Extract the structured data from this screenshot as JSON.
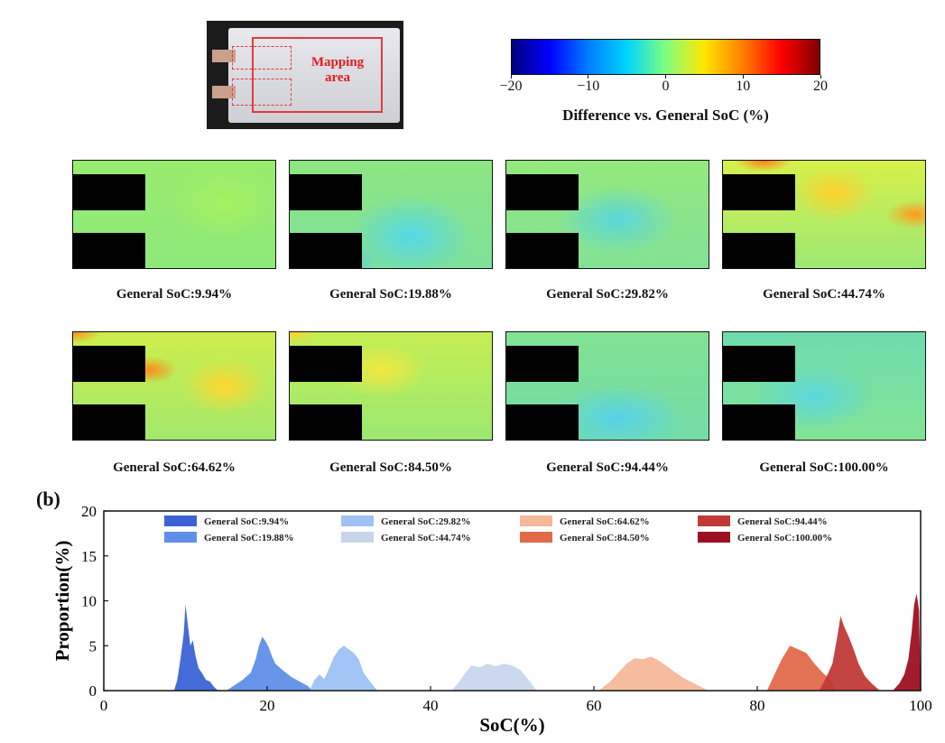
{
  "photo": {
    "label": "Mapping area"
  },
  "colorbar": {
    "ticks": [
      "−20",
      "−10",
      "0",
      "10",
      "20"
    ],
    "label": "Difference vs. General SoC (%)",
    "colors": [
      "#00007f",
      "#0000ff",
      "#007fff",
      "#00d4ff",
      "#7fff7f",
      "#ffe600",
      "#ff7f00",
      "#ff0000",
      "#7f0000"
    ]
  },
  "maps": {
    "items": [
      {
        "label": "General SoC:9.94%"
      },
      {
        "label": "General SoC:19.88%"
      },
      {
        "label": "General SoC:29.82%"
      },
      {
        "label": "General SoC:44.74%"
      },
      {
        "label": "General SoC:64.62%"
      },
      {
        "label": "General SoC:84.50%"
      },
      {
        "label": "General SoC:94.44%"
      },
      {
        "label": "General SoC:100.00%"
      }
    ]
  },
  "panel_b": {
    "tag": "(b)"
  },
  "chart_data": {
    "type": "area",
    "title": "",
    "xlabel": "SoC(%)",
    "ylabel": "Proportion(%)",
    "xlim": [
      0,
      100
    ],
    "ylim": [
      0,
      20
    ],
    "xticks": [
      0,
      20,
      40,
      60,
      80,
      100
    ],
    "yticks": [
      0,
      5,
      10,
      15,
      20
    ],
    "grid": false,
    "legend": "top",
    "series": [
      {
        "name": "General SoC:9.94%",
        "color": "#3b63d6",
        "points": [
          [
            8.6,
            0
          ],
          [
            9.0,
            1.2
          ],
          [
            9.3,
            3.0
          ],
          [
            9.6,
            5.0
          ],
          [
            9.8,
            6.5
          ],
          [
            10.0,
            9.6
          ],
          [
            10.2,
            8.0
          ],
          [
            10.4,
            6.5
          ],
          [
            10.6,
            5.0
          ],
          [
            10.9,
            5.6
          ],
          [
            11.2,
            4.0
          ],
          [
            11.6,
            2.5
          ],
          [
            12.0,
            2.0
          ],
          [
            12.5,
            1.2
          ],
          [
            13.0,
            1.0
          ],
          [
            13.5,
            0.4
          ],
          [
            14.0,
            0
          ]
        ]
      },
      {
        "name": "General SoC:19.88%",
        "color": "#5f8fe8",
        "points": [
          [
            15.0,
            0
          ],
          [
            16.0,
            0.6
          ],
          [
            17.0,
            1.2
          ],
          [
            18.0,
            2.0
          ],
          [
            18.6,
            3.5
          ],
          [
            19.0,
            5.0
          ],
          [
            19.4,
            6.0
          ],
          [
            19.8,
            5.5
          ],
          [
            20.2,
            4.8
          ],
          [
            20.6,
            3.8
          ],
          [
            21.0,
            3.0
          ],
          [
            22.0,
            2.2
          ],
          [
            23.0,
            1.5
          ],
          [
            24.0,
            1.0
          ],
          [
            25.0,
            0.5
          ],
          [
            25.5,
            0
          ]
        ]
      },
      {
        "name": "General SoC:29.82%",
        "color": "#9ec2f4",
        "points": [
          [
            25.2,
            0
          ],
          [
            25.8,
            1.2
          ],
          [
            26.4,
            1.8
          ],
          [
            27.0,
            1.3
          ],
          [
            27.6,
            2.5
          ],
          [
            28.2,
            3.8
          ],
          [
            28.8,
            4.6
          ],
          [
            29.4,
            5.0
          ],
          [
            30.0,
            4.6
          ],
          [
            30.6,
            4.2
          ],
          [
            31.2,
            3.5
          ],
          [
            31.8,
            2.0
          ],
          [
            32.6,
            1.0
          ],
          [
            33.5,
            0
          ]
        ]
      },
      {
        "name": "General SoC:44.74%",
        "color": "#c8d6ec",
        "points": [
          [
            42.6,
            0
          ],
          [
            43.5,
            1.0
          ],
          [
            44.3,
            2.0
          ],
          [
            45.0,
            2.8
          ],
          [
            46.0,
            2.6
          ],
          [
            47.0,
            3.0
          ],
          [
            48.0,
            2.7
          ],
          [
            49.0,
            3.0
          ],
          [
            50.0,
            2.8
          ],
          [
            51.0,
            2.3
          ],
          [
            52.0,
            1.2
          ],
          [
            53.0,
            0
          ]
        ]
      },
      {
        "name": "General SoC:64.62%",
        "color": "#f4b89a",
        "points": [
          [
            60.6,
            0
          ],
          [
            62.0,
            1.0
          ],
          [
            63.0,
            2.0
          ],
          [
            64.0,
            3.0
          ],
          [
            65.0,
            3.6
          ],
          [
            66.0,
            3.5
          ],
          [
            67.0,
            3.8
          ],
          [
            68.0,
            3.3
          ],
          [
            69.0,
            2.7
          ],
          [
            70.0,
            2.0
          ],
          [
            71.0,
            1.4
          ],
          [
            72.5,
            0.7
          ],
          [
            74.0,
            0
          ]
        ]
      },
      {
        "name": "General SoC:84.50%",
        "color": "#e06a4a",
        "points": [
          [
            81.2,
            0
          ],
          [
            82.0,
            1.6
          ],
          [
            83.0,
            3.5
          ],
          [
            84.0,
            5.0
          ],
          [
            85.0,
            4.6
          ],
          [
            86.0,
            4.2
          ],
          [
            87.0,
            3.0
          ],
          [
            88.0,
            2.0
          ],
          [
            89.0,
            1.2
          ],
          [
            89.6,
            0
          ]
        ]
      },
      {
        "name": "General SoC:94.44%",
        "color": "#c03a36",
        "points": [
          [
            87.6,
            0
          ],
          [
            88.4,
            1.4
          ],
          [
            89.2,
            3.0
          ],
          [
            89.8,
            6.0
          ],
          [
            90.2,
            8.3
          ],
          [
            90.6,
            7.2
          ],
          [
            91.2,
            6.0
          ],
          [
            91.8,
            4.6
          ],
          [
            92.4,
            3.0
          ],
          [
            93.2,
            1.6
          ],
          [
            94.0,
            0.8
          ],
          [
            95.0,
            0
          ]
        ]
      },
      {
        "name": "General SoC:100.00%",
        "color": "#9e0f22",
        "points": [
          [
            96.6,
            0
          ],
          [
            97.4,
            0.8
          ],
          [
            98.0,
            1.8
          ],
          [
            98.5,
            3.5
          ],
          [
            98.9,
            6.5
          ],
          [
            99.2,
            9.5
          ],
          [
            99.5,
            10.8
          ],
          [
            99.8,
            9.0
          ],
          [
            100.0,
            0
          ]
        ]
      }
    ]
  }
}
